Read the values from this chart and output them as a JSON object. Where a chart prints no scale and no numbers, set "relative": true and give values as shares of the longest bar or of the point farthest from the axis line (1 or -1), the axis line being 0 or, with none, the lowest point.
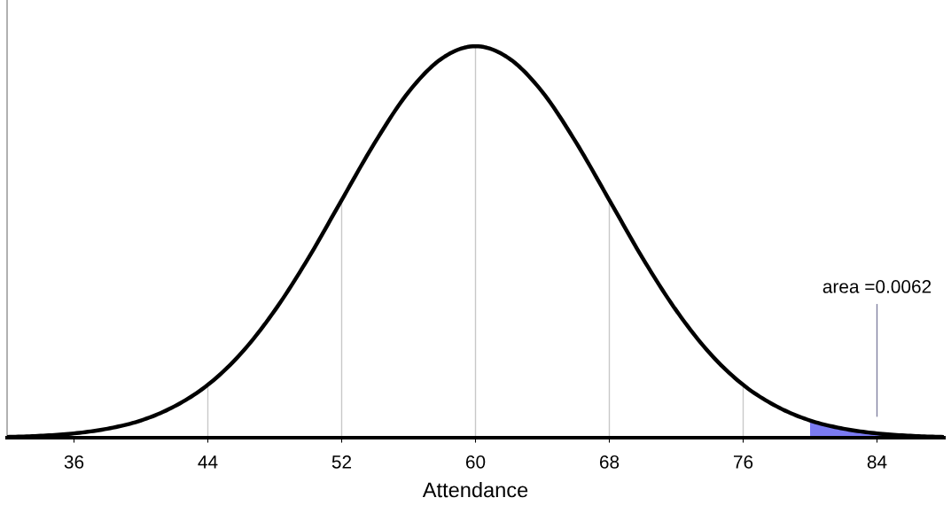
{
  "chart_data": {
    "type": "line",
    "relative": true,
    "xlabel": "Attendance",
    "x": [
      32,
      34,
      36,
      38,
      40,
      42,
      44,
      46,
      48,
      50,
      52,
      54,
      56,
      58,
      60,
      62,
      64,
      66,
      68,
      70,
      72,
      74,
      76,
      78,
      80,
      82,
      84,
      86,
      88
    ],
    "xlim": [
      32,
      88
    ],
    "xticks": [
      36,
      44,
      52,
      60,
      68,
      76,
      84
    ],
    "grid": false,
    "series": [
      {
        "color": "#000000",
        "values": [
          0.002,
          0.005,
          0.011,
          0.023,
          0.044,
          0.08,
          0.135,
          0.216,
          0.325,
          0.458,
          0.607,
          0.755,
          0.883,
          0.969,
          1,
          0.969,
          0.883,
          0.755,
          0.607,
          0.458,
          0.325,
          0.216,
          0.135,
          0.08,
          0.044,
          0.023,
          0.011,
          0.005,
          0.002
        ]
      },
      {
        "type": "area",
        "color": "#7b7bf2",
        "x": [
          80,
          82,
          84,
          86,
          88
        ],
        "values": [
          0.044,
          0.023,
          0.011,
          0.005,
          0.002
        ]
      }
    ],
    "ref_lines": [
      {
        "axis": "x",
        "value": 44,
        "color": "#c8c8c8"
      },
      {
        "axis": "x",
        "value": 52,
        "color": "#c8c8c8"
      },
      {
        "axis": "x",
        "value": 60,
        "color": "#c8c8c8"
      },
      {
        "axis": "x",
        "value": 68,
        "color": "#c8c8c8"
      },
      {
        "axis": "x",
        "value": 76,
        "color": "#c8c8c8"
      },
      {
        "axis": "x",
        "value": 84,
        "color": "#8080a0"
      }
    ],
    "annotations": [
      "area =0.0062"
    ]
  }
}
